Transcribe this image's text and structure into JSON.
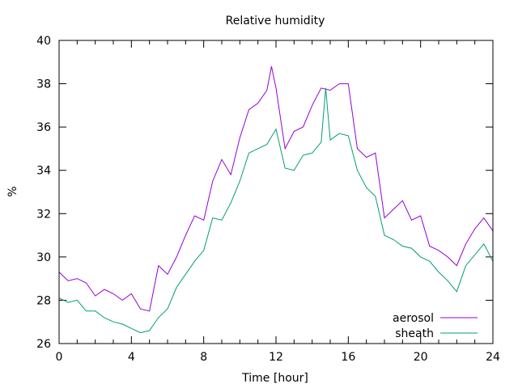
{
  "chart_data": {
    "type": "line",
    "title": "Relative humidity",
    "xlabel": "Time [hour]",
    "ylabel": "%",
    "xlim": [
      0,
      24
    ],
    "ylim": [
      26,
      40
    ],
    "xticks": [
      0,
      4,
      8,
      12,
      16,
      20,
      24
    ],
    "yticks": [
      26,
      28,
      30,
      32,
      34,
      36,
      38,
      40
    ],
    "grid": false,
    "legend_position": "bottom-right",
    "series": [
      {
        "name": "aerosol",
        "color": "#9400d3",
        "x": [
          0,
          0.5,
          1,
          1.5,
          2,
          2.5,
          3,
          3.5,
          4,
          4.5,
          5,
          5.5,
          6,
          6.5,
          7,
          7.5,
          8,
          8.5,
          9,
          9.5,
          10,
          10.5,
          11,
          11.5,
          11.75,
          12,
          12.5,
          13,
          13.5,
          14,
          14.5,
          15,
          15.5,
          16,
          16.5,
          17,
          17.5,
          18,
          18.5,
          19,
          19.5,
          20,
          20.5,
          21,
          21.5,
          22,
          22.5,
          23,
          23.5,
          24
        ],
        "y": [
          29.3,
          28.9,
          29.0,
          28.8,
          28.2,
          28.5,
          28.3,
          28.0,
          28.3,
          27.6,
          27.5,
          29.6,
          29.2,
          30.0,
          31.0,
          31.9,
          31.7,
          33.5,
          34.5,
          33.8,
          35.5,
          36.8,
          37.1,
          37.7,
          38.8,
          37.8,
          35.0,
          35.8,
          36.0,
          37.0,
          37.8,
          37.7,
          38.0,
          38.0,
          35.0,
          34.6,
          34.8,
          31.8,
          32.2,
          32.6,
          31.7,
          31.9,
          30.5,
          30.3,
          30.0,
          29.6,
          30.6,
          31.3,
          31.8,
          31.2
        ]
      },
      {
        "name": "sheath",
        "color": "#009e73",
        "x": [
          0,
          0.5,
          1,
          1.5,
          2,
          2.5,
          3,
          3.5,
          4,
          4.5,
          5,
          5.5,
          6,
          6.5,
          7,
          7.5,
          8,
          8.5,
          9,
          9.5,
          10,
          10.5,
          11,
          11.5,
          12,
          12.5,
          13,
          13.5,
          14,
          14.5,
          14.75,
          15,
          15.5,
          16,
          16.5,
          17,
          17.5,
          18,
          18.5,
          19,
          19.5,
          20,
          20.5,
          21,
          21.5,
          22,
          22.5,
          23,
          23.5,
          24
        ],
        "y": [
          28.1,
          27.9,
          28.0,
          27.5,
          27.5,
          27.2,
          27.0,
          26.9,
          26.7,
          26.5,
          26.6,
          27.2,
          27.6,
          28.6,
          29.2,
          29.8,
          30.3,
          31.8,
          31.7,
          32.5,
          33.5,
          34.8,
          35.0,
          35.2,
          35.9,
          34.1,
          34.0,
          34.7,
          34.8,
          35.3,
          37.8,
          35.4,
          35.7,
          35.6,
          34.0,
          33.2,
          32.8,
          31.0,
          30.8,
          30.5,
          30.4,
          30.0,
          29.8,
          29.3,
          28.9,
          28.4,
          29.6,
          30.1,
          30.6,
          29.8
        ]
      }
    ]
  }
}
